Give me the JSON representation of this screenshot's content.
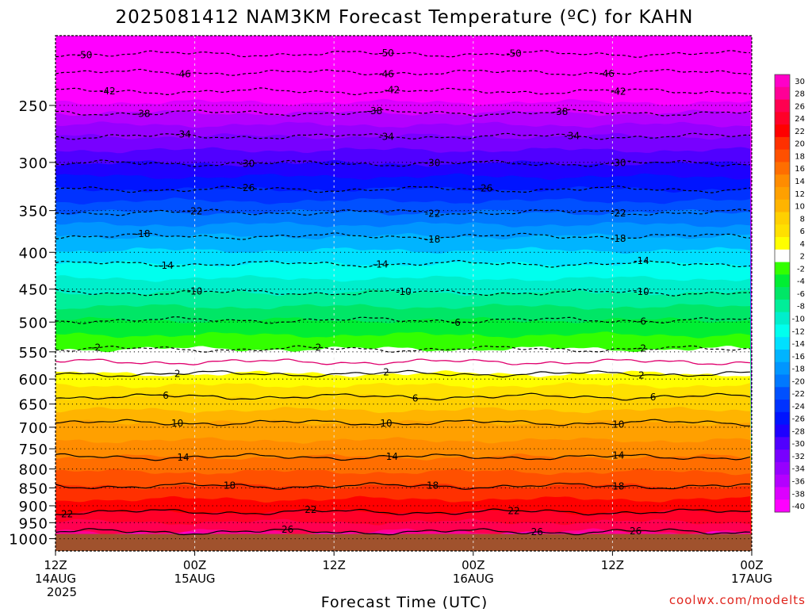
{
  "title": "2025081412 NAM3KM Forecast Temperature (ºC) for KAHN",
  "watermark": "coolwx.com/modelts",
  "chart_data": {
    "type": "heatmap",
    "title": "2025081412 NAM3KM Forecast Temperature (ºC) for KAHN",
    "xlabel": "Forecast Time (UTC)",
    "ylabel": "",
    "x_range_hours": [
      0,
      60
    ],
    "y_range_hpa": [
      1040,
      200
    ],
    "y_scale": "log",
    "grid": true,
    "pressure_ticks": [
      250,
      300,
      350,
      400,
      450,
      500,
      550,
      600,
      650,
      700,
      750,
      800,
      850,
      900,
      950,
      1000
    ],
    "time_ticks": [
      {
        "hour": 0,
        "line1": "12Z",
        "line2": "14AUG",
        "line3": "2025"
      },
      {
        "hour": 12,
        "line1": "00Z",
        "line2": "15AUG",
        "line3": ""
      },
      {
        "hour": 24,
        "line1": "12Z",
        "line2": "",
        "line3": ""
      },
      {
        "hour": 36,
        "line1": "00Z",
        "line2": "16AUG",
        "line3": ""
      },
      {
        "hour": 48,
        "line1": "12Z",
        "line2": "",
        "line3": ""
      },
      {
        "hour": 60,
        "line1": "00Z",
        "line2": "17AUG",
        "line3": ""
      }
    ],
    "ground_level_hpa": 985,
    "ground_color": "#a0522d",
    "colorbar": {
      "labels": [
        "30",
        "28",
        "26",
        "24",
        "22",
        "20",
        "18",
        "16",
        "14",
        "12",
        "10",
        "8",
        "6",
        "4",
        "2",
        "-2",
        "-4",
        "-6",
        "-8",
        "-10",
        "-12",
        "-14",
        "-16",
        "-18",
        "-20",
        "-22",
        "-24",
        "-26",
        "-28",
        "-30",
        "-32",
        "-34",
        "-36",
        "-38",
        "-40"
      ],
      "colors": [
        "#ff00c8",
        "#ff0096",
        "#ff0050",
        "#ff0028",
        "#ff0000",
        "#ff3000",
        "#ff5000",
        "#ff6e00",
        "#ff8c00",
        "#ffa000",
        "#ffb400",
        "#ffd000",
        "#ffe000",
        "#ffff00",
        "#ffffff",
        "#33ff00",
        "#00ee33",
        "#00e666",
        "#00ee99",
        "#00eecc",
        "#00ffee",
        "#00e0ff",
        "#00b4ff",
        "#0096ff",
        "#0078ff",
        "#0050ff",
        "#0032ff",
        "#0014ff",
        "#1e00ff",
        "#5000ff",
        "#7800ff",
        "#9600ff",
        "#b400ff",
        "#dc00ff",
        "#ff00ff"
      ]
    },
    "contours": [
      {
        "value": -50,
        "dashed": true,
        "pressure": 212,
        "labels": [
          {
            "hour": 2.5,
            "text": "-50"
          },
          {
            "hour": 28.5,
            "text": "-50"
          },
          {
            "hour": 39.5,
            "text": "-50"
          }
        ]
      },
      {
        "value": -46,
        "dashed": true,
        "pressure": 225,
        "labels": [
          {
            "hour": 11,
            "text": "-46"
          },
          {
            "hour": 28.5,
            "text": "-46"
          },
          {
            "hour": 47.5,
            "text": "-46"
          }
        ]
      },
      {
        "value": -42,
        "dashed": true,
        "pressure": 239,
        "labels": [
          {
            "hour": 4.5,
            "text": "-42"
          },
          {
            "hour": 29,
            "text": "-42"
          },
          {
            "hour": 48.5,
            "text": "-42"
          }
        ]
      },
      {
        "value": -38,
        "dashed": true,
        "pressure": 256,
        "labels": [
          {
            "hour": 7.5,
            "text": "-38"
          },
          {
            "hour": 27.5,
            "text": "-38"
          },
          {
            "hour": 43.5,
            "text": "-38"
          }
        ]
      },
      {
        "value": -34,
        "dashed": true,
        "pressure": 276,
        "labels": [
          {
            "hour": 11,
            "text": "-34"
          },
          {
            "hour": 28.5,
            "text": "-34"
          },
          {
            "hour": 44.5,
            "text": "-34"
          }
        ]
      },
      {
        "value": -30,
        "dashed": true,
        "pressure": 301,
        "labels": [
          {
            "hour": 16.5,
            "text": "-30"
          },
          {
            "hour": 32.5,
            "text": "-30"
          },
          {
            "hour": 48.5,
            "text": "-30"
          }
        ]
      },
      {
        "value": -26,
        "dashed": true,
        "pressure": 327,
        "labels": [
          {
            "hour": 16.5,
            "text": "-26"
          },
          {
            "hour": 37,
            "text": "-26"
          }
        ]
      },
      {
        "value": -22,
        "dashed": true,
        "pressure": 352,
        "labels": [
          {
            "hour": 12,
            "text": "-22"
          },
          {
            "hour": 32.5,
            "text": "-22"
          },
          {
            "hour": 48.5,
            "text": "-22"
          }
        ]
      },
      {
        "value": -18,
        "dashed": true,
        "pressure": 380,
        "labels": [
          {
            "hour": 7.5,
            "text": "-18"
          },
          {
            "hour": 32.5,
            "text": "-18"
          },
          {
            "hour": 48.5,
            "text": "-18"
          }
        ]
      },
      {
        "value": -14,
        "dashed": true,
        "pressure": 415,
        "labels": [
          {
            "hour": 9.5,
            "text": "-14"
          },
          {
            "hour": 28,
            "text": "-14"
          },
          {
            "hour": 50.5,
            "text": "-14"
          }
        ]
      },
      {
        "value": -10,
        "dashed": true,
        "pressure": 455,
        "labels": [
          {
            "hour": 12,
            "text": "-10"
          },
          {
            "hour": 30,
            "text": "-10"
          },
          {
            "hour": 50.5,
            "text": "-10"
          }
        ]
      },
      {
        "value": -6,
        "dashed": true,
        "pressure": 497,
        "labels": [
          {
            "hour": 34.5,
            "text": "-6"
          },
          {
            "hour": 50.5,
            "text": "-6"
          }
        ]
      },
      {
        "value": -2,
        "dashed": true,
        "pressure": 545,
        "labels": [
          {
            "hour": 3.5,
            "text": "-2"
          },
          {
            "hour": 22.5,
            "text": "-2"
          },
          {
            "hour": 50.5,
            "text": "-2"
          }
        ]
      },
      {
        "value": 0,
        "dashed": false,
        "pressure": 568,
        "labels": []
      },
      {
        "value": 2,
        "dashed": false,
        "pressure": 590,
        "labels": [
          {
            "hour": 10.5,
            "text": "2"
          },
          {
            "hour": 28.5,
            "text": "2"
          },
          {
            "hour": 50.5,
            "text": "2"
          }
        ]
      },
      {
        "value": 6,
        "dashed": false,
        "pressure": 635,
        "labels": [
          {
            "hour": 9.5,
            "text": "6"
          },
          {
            "hour": 31,
            "text": "6"
          },
          {
            "hour": 51.5,
            "text": "6"
          }
        ]
      },
      {
        "value": 10,
        "dashed": false,
        "pressure": 690,
        "labels": [
          {
            "hour": 10.5,
            "text": "10"
          },
          {
            "hour": 28.5,
            "text": "10"
          },
          {
            "hour": 48.5,
            "text": "10"
          }
        ]
      },
      {
        "value": 14,
        "dashed": false,
        "pressure": 770,
        "labels": [
          {
            "hour": 11,
            "text": "14"
          },
          {
            "hour": 29,
            "text": "14"
          },
          {
            "hour": 48.5,
            "text": "14"
          }
        ]
      },
      {
        "value": 18,
        "dashed": false,
        "pressure": 845,
        "labels": [
          {
            "hour": 15,
            "text": "18"
          },
          {
            "hour": 32.5,
            "text": "18"
          },
          {
            "hour": 48.5,
            "text": "18"
          }
        ]
      },
      {
        "value": 22,
        "dashed": false,
        "pressure": 918,
        "labels": [
          {
            "hour": 1,
            "text": "22"
          },
          {
            "hour": 22,
            "text": "22"
          },
          {
            "hour": 39.5,
            "text": "22"
          }
        ]
      },
      {
        "value": 26,
        "dashed": false,
        "pressure": 978,
        "labels": [
          {
            "hour": 20,
            "text": "26"
          },
          {
            "hour": 41.5,
            "text": "26"
          },
          {
            "hour": 50,
            "text": "26"
          }
        ]
      }
    ]
  }
}
